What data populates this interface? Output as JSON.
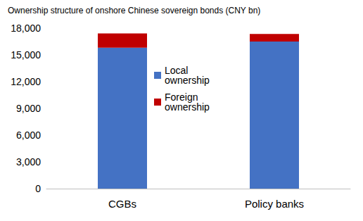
{
  "chart_data": {
    "type": "bar",
    "title": "Ownership structure of onshore Chinese sovereign bonds (CNY bn)",
    "categories": [
      "CGBs",
      "Policy banks"
    ],
    "series": [
      {
        "name": "Local ownership",
        "color": "#4472C4",
        "values": [
          15800,
          16500
        ]
      },
      {
        "name": "Foreign ownership",
        "color": "#C00000",
        "values": [
          1600,
          850
        ]
      }
    ],
    "stacked": true,
    "ylim": [
      0,
      18000
    ],
    "yticks": [
      0,
      3000,
      6000,
      9000,
      12000,
      15000,
      18000
    ],
    "grid": false,
    "legend": "center"
  }
}
